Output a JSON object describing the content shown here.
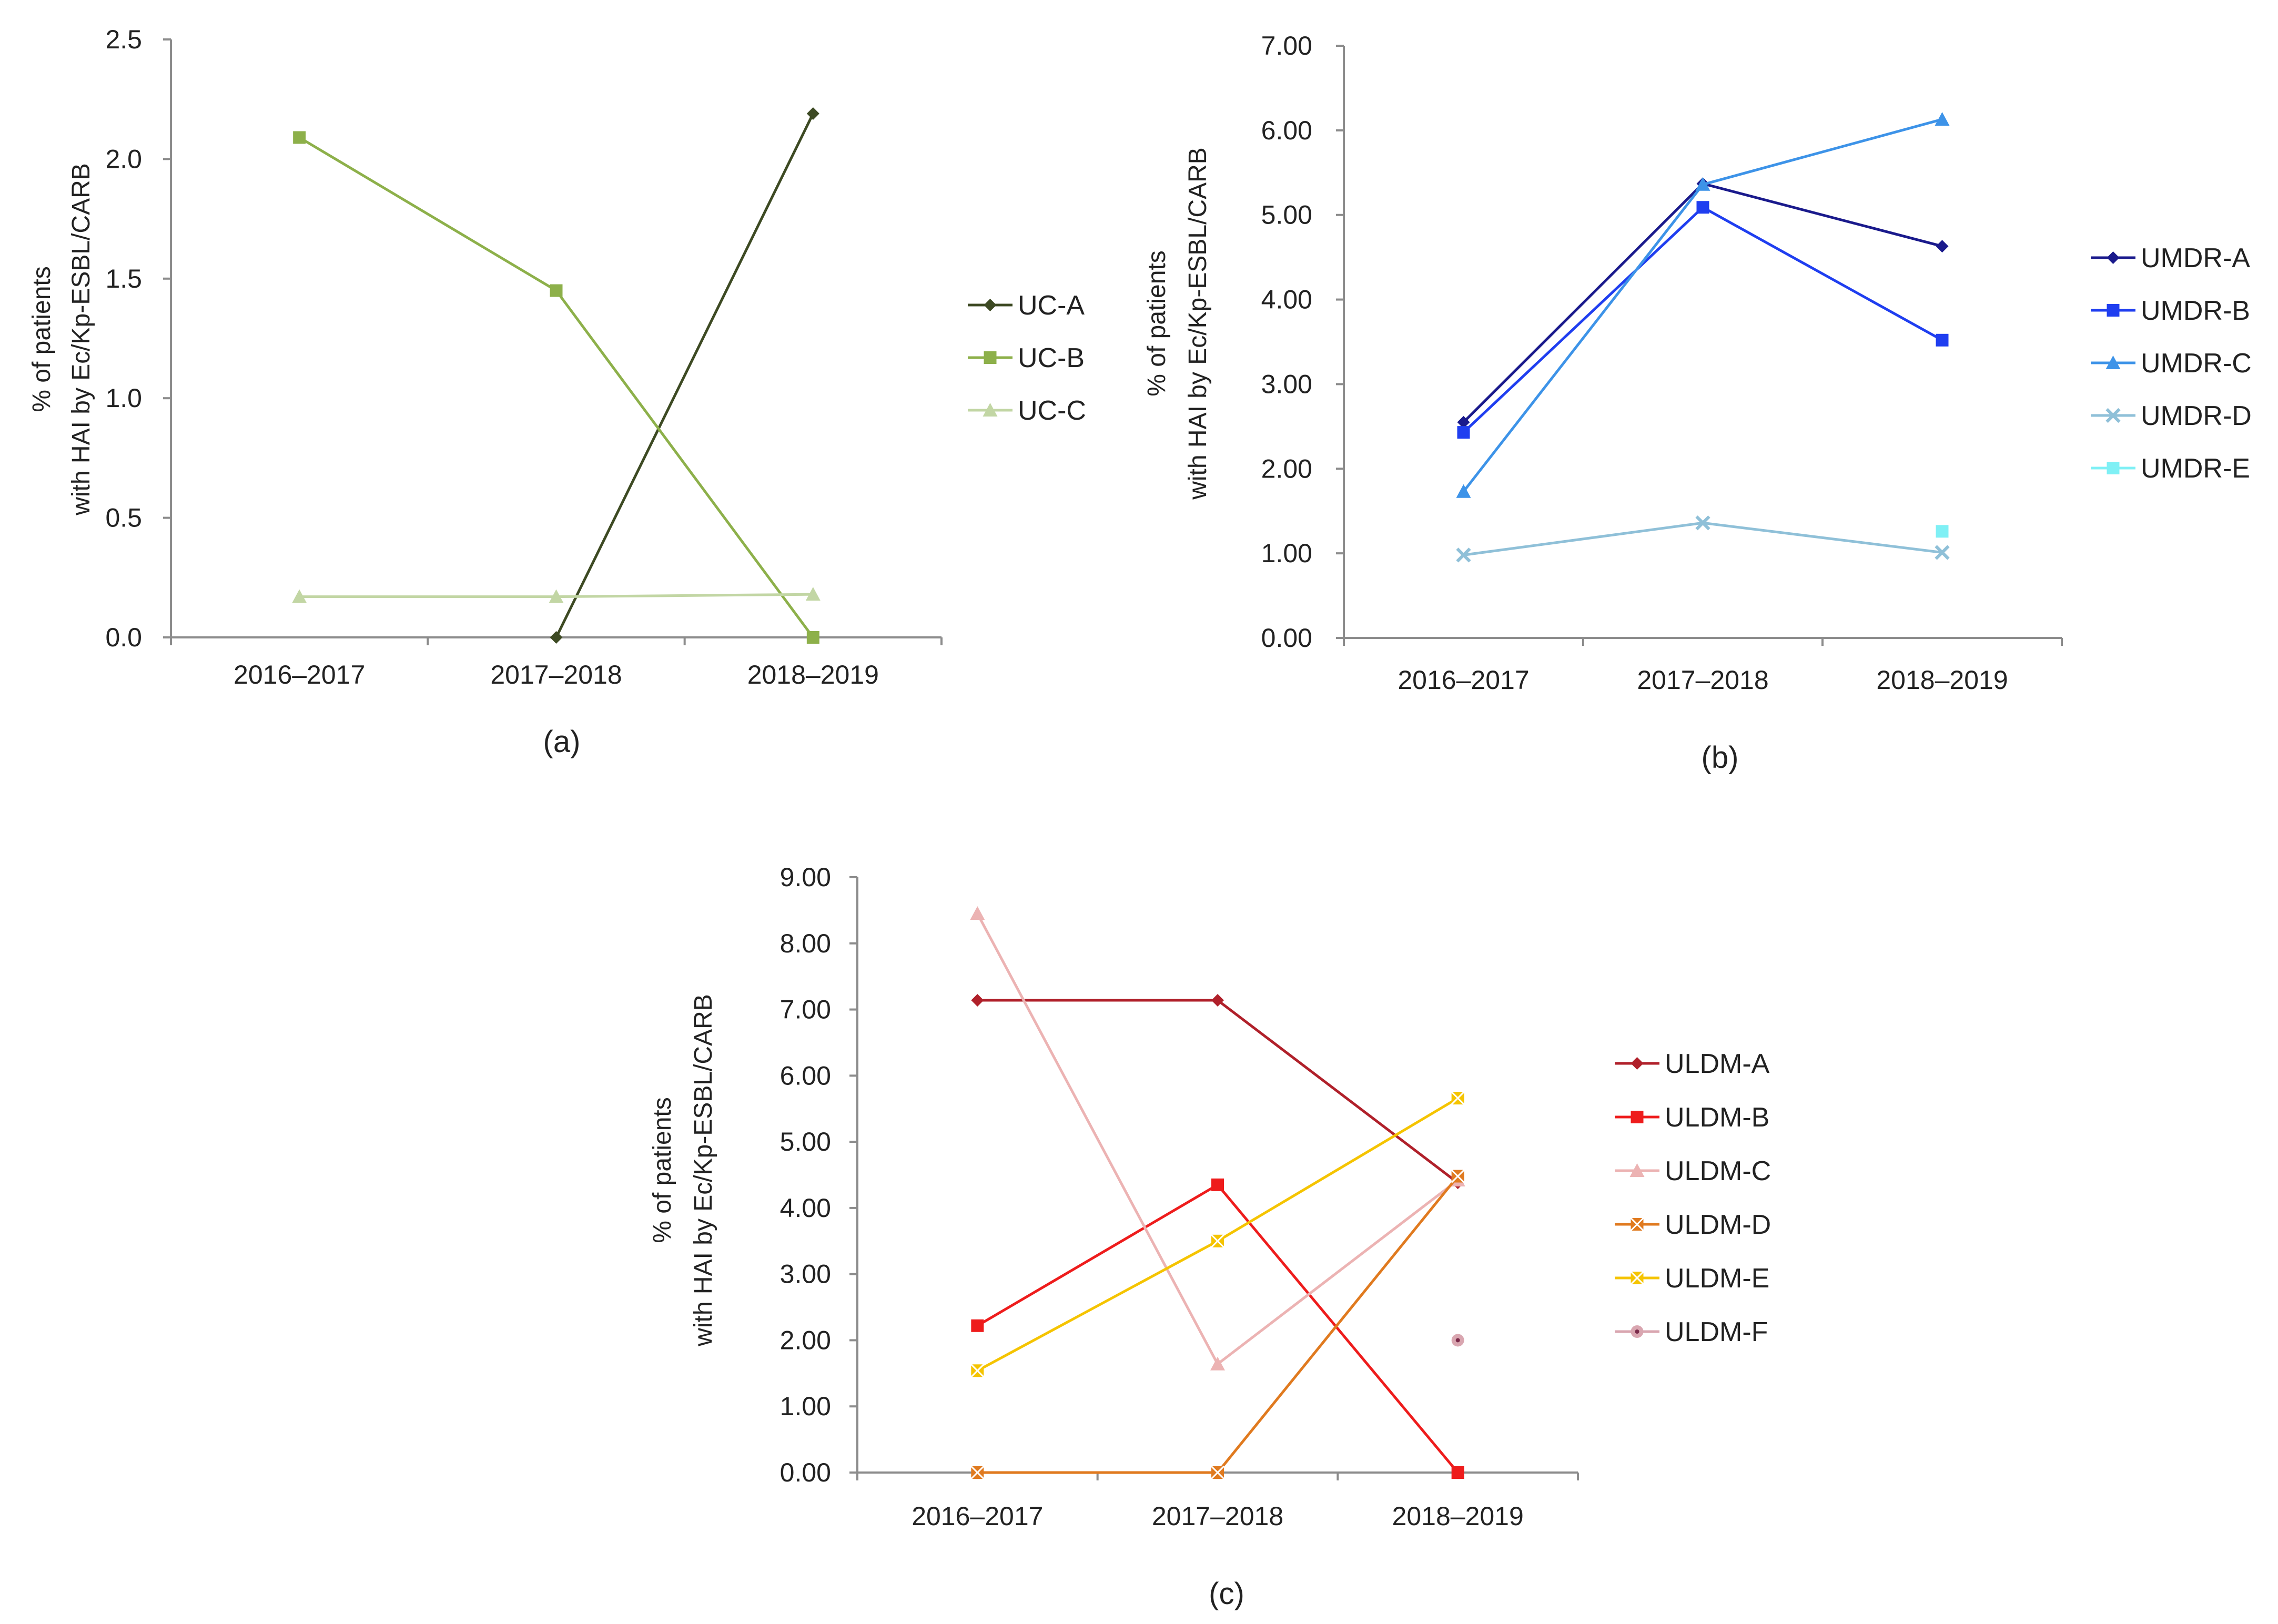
{
  "chart_data": [
    {
      "id": "a",
      "type": "line",
      "panel_label": "(a)",
      "ylabel_lines": [
        "% of patients",
        "with HAI by Ec/Kp-ESBL/CARB"
      ],
      "categories": [
        "2016–2017",
        "2017–2018",
        "2018–2019"
      ],
      "ylim": [
        0,
        2.5
      ],
      "yticks": [
        "0.0",
        "0.5",
        "1.0",
        "1.5",
        "2.0",
        "2.5"
      ],
      "ytick_values": [
        0,
        0.5,
        1.0,
        1.5,
        2.0,
        2.5
      ],
      "grid": false,
      "legend_position": "right",
      "series": [
        {
          "name": "UC-A",
          "color": "#3d4a23",
          "marker": "diamond",
          "values": [
            null,
            0.0,
            2.19
          ]
        },
        {
          "name": "UC-B",
          "color": "#8db04a",
          "marker": "square",
          "values": [
            2.09,
            1.45,
            0.0
          ]
        },
        {
          "name": "UC-C",
          "color": "#c2d6a4",
          "marker": "triangle",
          "values": [
            0.17,
            0.17,
            0.18
          ]
        }
      ]
    },
    {
      "id": "b",
      "type": "line",
      "panel_label": "(b)",
      "ylabel_lines": [
        "% of patients",
        "with HAI by Ec/Kp-ESBL/CARB"
      ],
      "categories": [
        "2016–2017",
        "2017–2018",
        "2018–2019"
      ],
      "ylim": [
        0,
        7
      ],
      "yticks": [
        "0.00",
        "1.00",
        "2.00",
        "3.00",
        "4.00",
        "5.00",
        "6.00",
        "7.00"
      ],
      "ytick_values": [
        0,
        1,
        2,
        3,
        4,
        5,
        6,
        7
      ],
      "grid": false,
      "legend_position": "right",
      "series": [
        {
          "name": "UMDR-A",
          "color": "#1a1a8c",
          "marker": "diamond",
          "values": [
            2.55,
            5.37,
            4.63
          ]
        },
        {
          "name": "UMDR-B",
          "color": "#1f3ef0",
          "marker": "square",
          "values": [
            2.43,
            5.09,
            3.52
          ]
        },
        {
          "name": "UMDR-C",
          "color": "#3d93e8",
          "marker": "triangle",
          "values": [
            1.73,
            5.36,
            6.13
          ]
        },
        {
          "name": "UMDR-D",
          "color": "#8fc0d8",
          "marker": "x",
          "values": [
            0.98,
            1.36,
            1.01
          ]
        },
        {
          "name": "UMDR-E",
          "color": "#7ff0f5",
          "marker": "square",
          "values": [
            null,
            null,
            1.26
          ]
        }
      ]
    },
    {
      "id": "c",
      "type": "line",
      "panel_label": "(c)",
      "ylabel_lines": [
        "% of patients",
        "with HAI by Ec/Kp-ESBL/CARB"
      ],
      "categories": [
        "2016–2017",
        "2017–2018",
        "2018–2019"
      ],
      "ylim": [
        0,
        9
      ],
      "yticks": [
        "0.00",
        "1.00",
        "2.00",
        "3.00",
        "4.00",
        "5.00",
        "6.00",
        "7.00",
        "8.00",
        "9.00"
      ],
      "ytick_values": [
        0,
        1,
        2,
        3,
        4,
        5,
        6,
        7,
        8,
        9
      ],
      "grid": false,
      "legend_position": "right",
      "series": [
        {
          "name": "ULDM-A",
          "color": "#b0202a",
          "marker": "diamond",
          "values": [
            7.14,
            7.14,
            4.38
          ]
        },
        {
          "name": "ULDM-B",
          "color": "#ee1c1c",
          "marker": "square",
          "values": [
            2.22,
            4.35,
            0.0
          ]
        },
        {
          "name": "ULDM-C",
          "color": "#ecb3b3",
          "marker": "triangle",
          "values": [
            8.45,
            1.64,
            4.42
          ]
        },
        {
          "name": "ULDM-D",
          "color": "#e07a1f",
          "marker": "xsquare",
          "values": [
            0.0,
            0.0,
            4.48
          ]
        },
        {
          "name": "ULDM-E",
          "color": "#f5c400",
          "marker": "xsquare",
          "values": [
            1.54,
            3.5,
            5.66
          ]
        },
        {
          "name": "ULDM-F",
          "color": "#d9a6b0",
          "marker": "circle",
          "values": [
            null,
            null,
            2.0
          ]
        }
      ]
    }
  ]
}
